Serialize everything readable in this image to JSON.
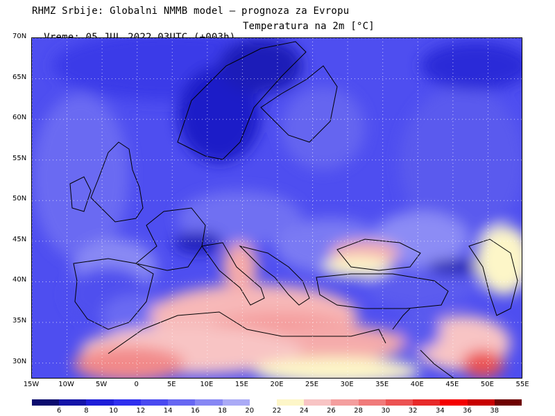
{
  "header": {
    "title": "RHMZ Srbije: Globalni NMMB model — prognoza za Evropu",
    "time": "Vreme: 05 JUL 2022 03UTC (+003h)",
    "parameter": "Temperatura na 2m [°C]"
  },
  "map": {
    "extent": {
      "lon_min": -15,
      "lon_max": 55,
      "lat_min": 28,
      "lat_max": 70
    },
    "lat_ticks": [
      "70N",
      "65N",
      "60N",
      "55N",
      "50N",
      "45N",
      "40N",
      "35N",
      "30N"
    ],
    "lat_values": [
      70,
      65,
      60,
      55,
      50,
      45,
      40,
      35,
      30
    ],
    "lon_ticks": [
      "15W",
      "10W",
      "5W",
      "0",
      "5E",
      "10E",
      "15E",
      "20E",
      "25E",
      "30E",
      "35E",
      "40E",
      "45E",
      "50E",
      "55E"
    ],
    "lon_values": [
      -15,
      -10,
      -5,
      0,
      5,
      10,
      15,
      20,
      25,
      30,
      35,
      40,
      45,
      50,
      55
    ],
    "gridlines": true
  },
  "colorbar": {
    "labels": [
      "6",
      "8",
      "10",
      "12",
      "14",
      "16",
      "18",
      "20",
      "22",
      "24",
      "26",
      "28",
      "30",
      "32",
      "34",
      "36",
      "38"
    ],
    "colors": [
      "#0b0b6e",
      "#1414a8",
      "#1e1ed8",
      "#2f2fee",
      "#4a4af0",
      "#6767f2",
      "#8787f4",
      "#aaaaf6",
      "#ffffff",
      "#fdf6c8",
      "#f8c4c4",
      "#f49e9e",
      "#f07a7a",
      "#ec5252",
      "#e82a2a",
      "#f40000",
      "#c80000",
      "#6e0000"
    ]
  }
}
